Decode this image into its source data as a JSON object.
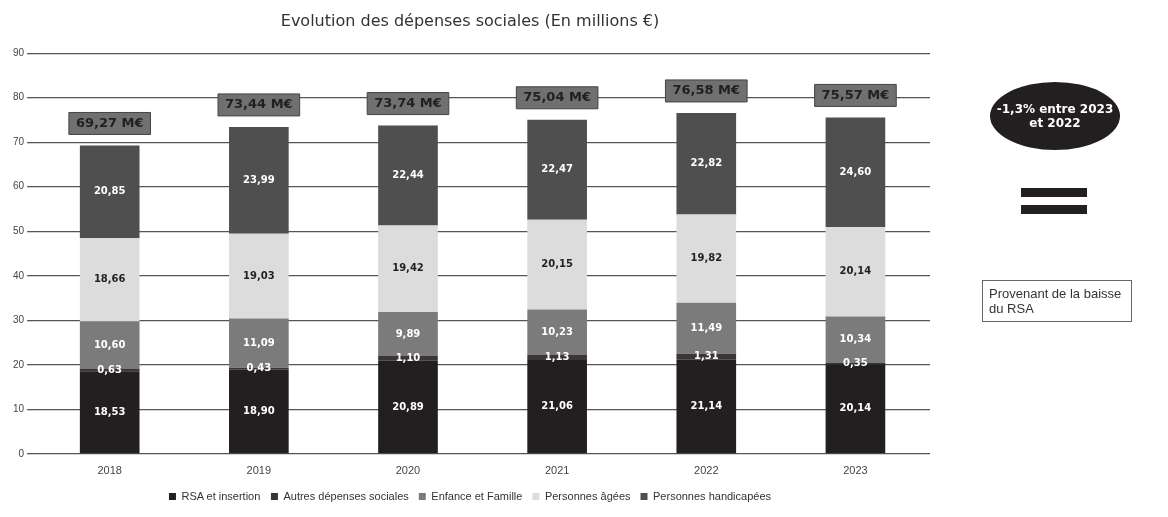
{
  "chart_data": {
    "type": "bar",
    "title": "Evolution des dépenses sociales (En millions €)",
    "categories": [
      "2018",
      "2019",
      "2020",
      "2021",
      "2022",
      "2023"
    ],
    "stacked": true,
    "series": [
      {
        "name": "RSA et insertion",
        "color": "#231f20",
        "values": [
          18.53,
          18.9,
          20.89,
          21.06,
          21.14,
          20.14
        ],
        "value_labels": [
          "18,53",
          "18,90",
          "20,89",
          "21,06",
          "21,14",
          "20,14"
        ]
      },
      {
        "name": "Autres dépenses sociales",
        "color": "#3a3536",
        "values": [
          0.63,
          0.43,
          1.1,
          1.13,
          1.31,
          0.35
        ],
        "value_labels": [
          "0,63",
          "0,43",
          "1,10",
          "1,13",
          "1,31",
          "0,35"
        ]
      },
      {
        "name": "Enfance et Famille",
        "color": "#7b7b7b",
        "values": [
          10.6,
          11.09,
          9.89,
          10.23,
          11.49,
          10.34
        ],
        "value_labels": [
          "10,60",
          "11,09",
          "9,89",
          "10,23",
          "11,49",
          "10,34"
        ]
      },
      {
        "name": "Personnes âgées",
        "color": "#dcdcdc",
        "values": [
          18.66,
          19.03,
          19.42,
          20.15,
          19.82,
          20.14
        ],
        "value_labels": [
          "18,66",
          "19,03",
          "19,42",
          "20,15",
          "19,82",
          "20,14"
        ]
      },
      {
        "name": "Personnes handicapées",
        "color": "#4f4f4f",
        "values": [
          20.85,
          23.99,
          22.44,
          22.47,
          22.82,
          24.6
        ],
        "value_labels": [
          "20,85",
          "23,99",
          "22,44",
          "22,47",
          "22,82",
          "24,60"
        ]
      }
    ],
    "totals": [
      "69,27 M€",
      "73,44 M€",
      "73,74 M€",
      "75,04 M€",
      "76,58 M€",
      "75,57 M€"
    ],
    "ylim": [
      0,
      90
    ],
    "yticks": [
      0,
      10,
      20,
      30,
      40,
      50,
      60,
      70,
      80,
      90
    ],
    "grid": "y",
    "legend": "bottom",
    "annotations": [
      "-1,3% entre 2023 et 2022",
      "Provenant de la baisse du RSA"
    ]
  }
}
